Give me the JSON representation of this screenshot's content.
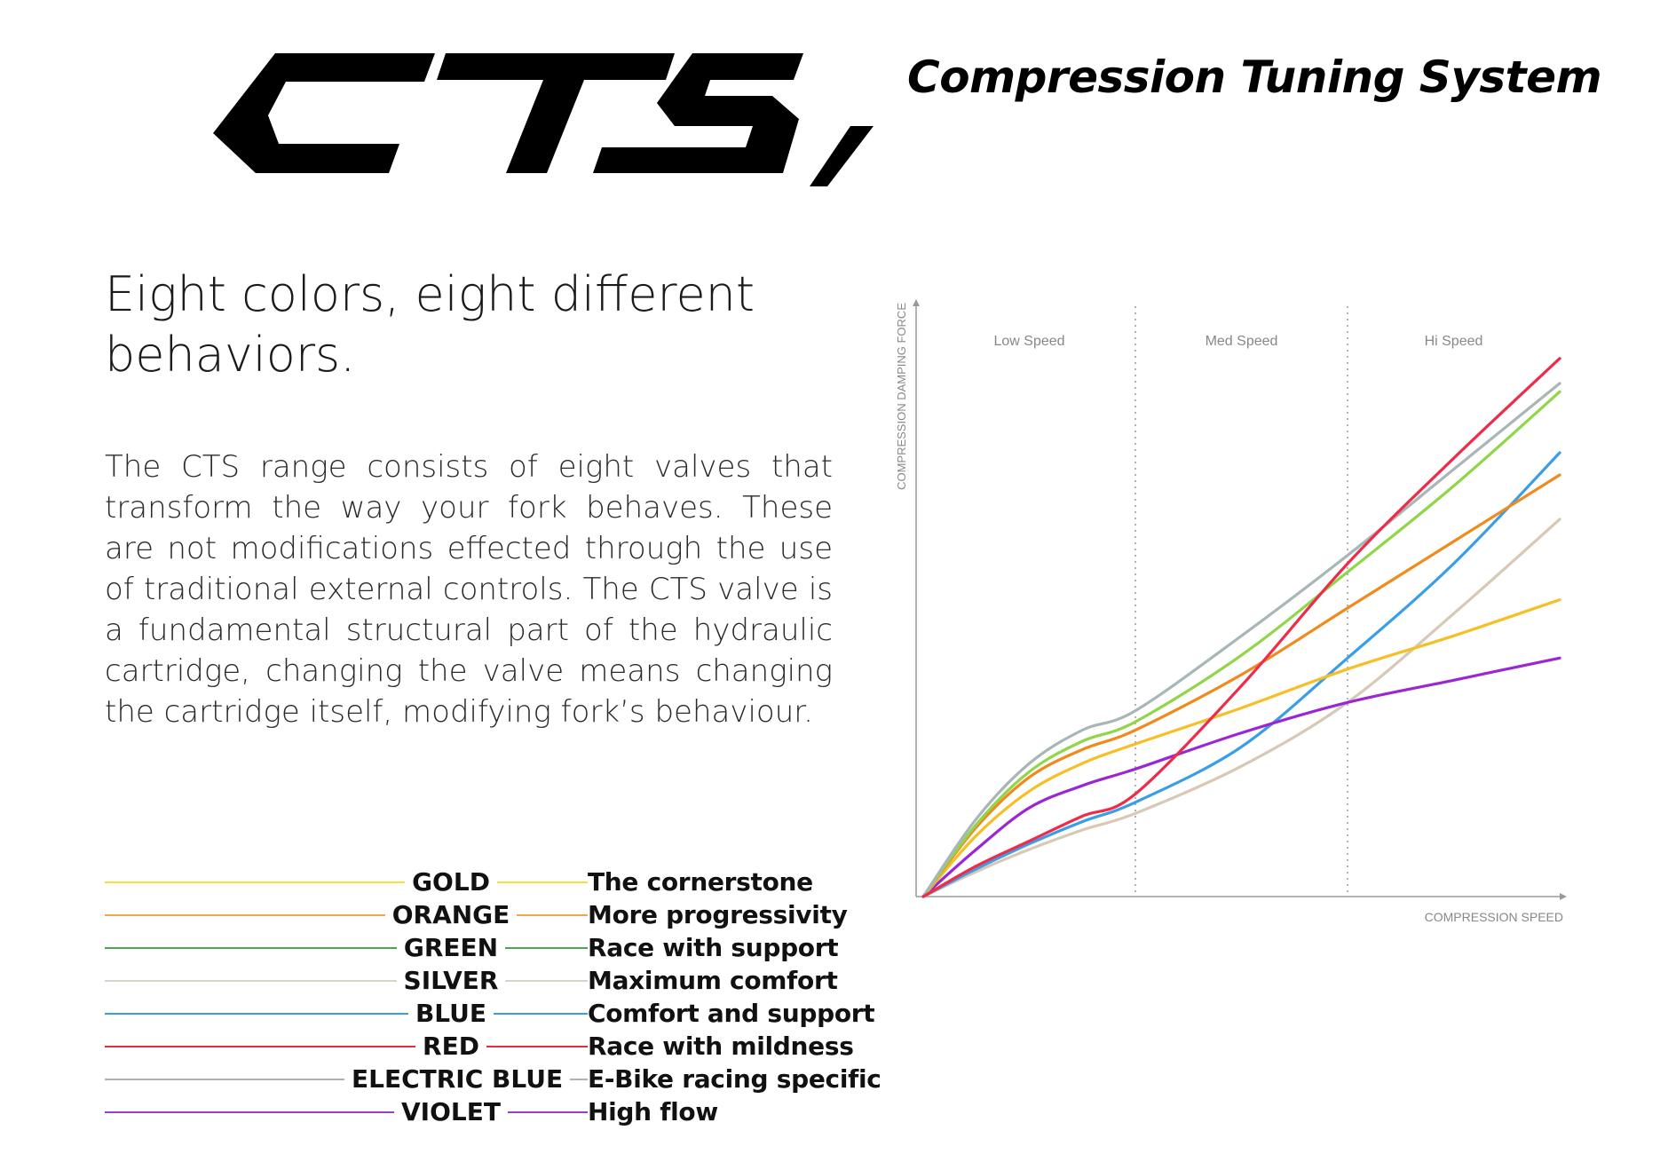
{
  "brand": {
    "logo_text": "CTS",
    "subtitle": "Compression Tuning System"
  },
  "headline": [
    "Eight colors, eight different",
    "behaviors."
  ],
  "body": "The CTS range consists of eight valves that trans­form the way your fork behaves. These are not mo­difications effected through the use of traditional external controls. The CTS valve is a fundamental structural part of the hydraulic cartridge, changing the valve means changing the cartridge itself, modi­fying fork’s behaviour.",
  "legend": [
    {
      "name": "GOLD",
      "description": "The cornerstone",
      "color": "#f5df3a"
    },
    {
      "name": "ORANGE",
      "description": "More progressivity",
      "color": "#f0a64c"
    },
    {
      "name": "GREEN",
      "description": "Race with support",
      "color": "#4aa84a"
    },
    {
      "name": "SILVER",
      "description": "Maximum comfort",
      "color": "#d8d4cc"
    },
    {
      "name": "BLUE",
      "description": "Comfort and support",
      "color": "#3a9de0"
    },
    {
      "name": "RED",
      "description": "Race with mildness",
      "color": "#e03040"
    },
    {
      "name": "ELECTRIC BLUE",
      "description": "E-Bike racing specific",
      "color": "#aab2b4"
    },
    {
      "name": "VIOLET",
      "description": "High flow",
      "color": "#9a3fc8"
    }
  ],
  "chart_data": {
    "type": "line",
    "title": "",
    "xlabel": "COMPRESSION SPEED",
    "ylabel": "COMPRESSION DAMPING FORCE",
    "xlim": [
      0,
      3
    ],
    "ylim": [
      0,
      1
    ],
    "zones": [
      "Low Speed",
      "Med Speed",
      "Hi Speed"
    ],
    "zone_dividers": [
      1,
      2
    ],
    "grid": false,
    "series": [
      {
        "name": "GOLD",
        "color": "#f6bf26",
        "x": [
          0,
          0.25,
          0.5,
          0.75,
          1.0,
          1.5,
          2.0,
          2.5,
          3.0
        ],
        "y": [
          0,
          0.11,
          0.19,
          0.24,
          0.275,
          0.34,
          0.41,
          0.47,
          0.535
        ]
      },
      {
        "name": "ORANGE",
        "color": "#f08a1c",
        "x": [
          0,
          0.25,
          0.5,
          0.75,
          1.0,
          1.5,
          2.0,
          2.5,
          3.0
        ],
        "y": [
          0,
          0.125,
          0.215,
          0.265,
          0.3,
          0.4,
          0.52,
          0.64,
          0.76
        ]
      },
      {
        "name": "GREEN",
        "color": "#8fd649",
        "x": [
          0,
          0.25,
          0.5,
          0.75,
          1.0,
          1.5,
          2.0,
          2.5,
          3.0
        ],
        "y": [
          0,
          0.13,
          0.225,
          0.28,
          0.315,
          0.435,
          0.585,
          0.74,
          0.91
        ]
      },
      {
        "name": "SILVER",
        "color": "#d8c8b4",
        "x": [
          0,
          0.25,
          0.5,
          0.75,
          1.0,
          1.5,
          2.0,
          2.5,
          3.0
        ],
        "y": [
          0,
          0.045,
          0.085,
          0.12,
          0.15,
          0.235,
          0.35,
          0.51,
          0.68
        ]
      },
      {
        "name": "BLUE",
        "color": "#3a9ee6",
        "x": [
          0,
          0.25,
          0.5,
          0.75,
          1.0,
          1.5,
          2.0,
          2.5,
          3.0
        ],
        "y": [
          0,
          0.05,
          0.095,
          0.135,
          0.17,
          0.27,
          0.43,
          0.6,
          0.8
        ]
      },
      {
        "name": "RED",
        "color": "#ee2c4a",
        "x": [
          0,
          0.25,
          0.5,
          0.75,
          1.0,
          1.5,
          2.0,
          2.5,
          3.0
        ],
        "y": [
          0,
          0.055,
          0.1,
          0.145,
          0.185,
          0.38,
          0.6,
          0.79,
          0.97
        ]
      },
      {
        "name": "ELECTRIC BLUE",
        "color": "#a9b6b8",
        "x": [
          0,
          0.25,
          0.5,
          0.75,
          1.0,
          1.5,
          2.0,
          2.5,
          3.0
        ],
        "y": [
          0,
          0.14,
          0.24,
          0.3,
          0.335,
          0.47,
          0.615,
          0.77,
          0.925
        ]
      },
      {
        "name": "VIOLET",
        "color": "#9b27d2",
        "x": [
          0,
          0.25,
          0.5,
          0.75,
          1.0,
          1.5,
          2.0,
          2.5,
          3.0
        ],
        "y": [
          0,
          0.085,
          0.16,
          0.2,
          0.23,
          0.295,
          0.35,
          0.39,
          0.43
        ]
      }
    ]
  }
}
